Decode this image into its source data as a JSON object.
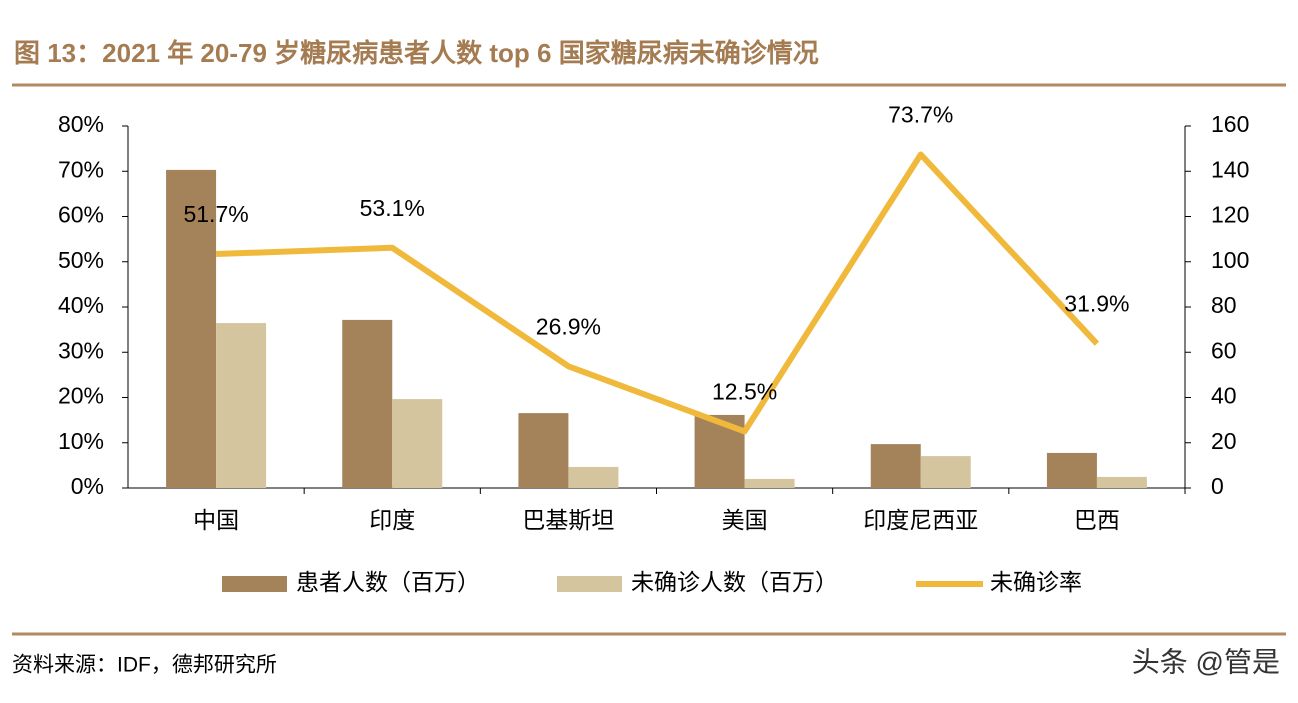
{
  "chart_data": {
    "type": "bar-line",
    "title": "图 13：2021 年 20-79 岁糖尿病患者人数 top 6 国家糖尿病未确诊情况",
    "source": "资料来源：IDF，德邦研究所",
    "watermark": "头条 @管是",
    "categories": [
      "中国",
      "印度",
      "巴基斯坦",
      "美国",
      "印度尼西亚",
      "巴西"
    ],
    "series": [
      {
        "name": "患者人数（百万）",
        "type": "bar",
        "axis": "y2",
        "color": "#a4825a",
        "values": [
          140.6,
          74.3,
          33.1,
          32.3,
          19.4,
          15.5
        ]
      },
      {
        "name": "未确诊人数（百万）",
        "type": "bar",
        "axis": "y2",
        "color": "#d5c59f",
        "values": [
          72.9,
          39.3,
          9.3,
          4.0,
          14.1,
          4.9
        ]
      },
      {
        "name": "未确诊率",
        "type": "line",
        "color": "#f0b93c",
        "values": [
          51.7,
          53.1,
          26.9,
          12.5,
          73.7,
          31.9
        ],
        "value_labels": [
          "51.7%",
          "53.1%",
          "26.9%",
          "12.5%",
          "73.7%",
          "31.9%"
        ]
      }
    ],
    "ylim": [
      0,
      80
    ],
    "yticks": [
      {
        "value": 0,
        "label": "0%"
      },
      {
        "value": 10,
        "label": "10%"
      },
      {
        "value": 20,
        "label": "20%"
      },
      {
        "value": 30,
        "label": "30%"
      },
      {
        "value": 40,
        "label": "40%"
      },
      {
        "value": 50,
        "label": "50%"
      },
      {
        "value": 60,
        "label": "60%"
      },
      {
        "value": 70,
        "label": "70%"
      },
      {
        "value": 80,
        "label": "80%"
      }
    ],
    "y2lim": [
      0,
      160
    ],
    "y2ticks": [
      0,
      20,
      40,
      60,
      80,
      100,
      120,
      140,
      160
    ],
    "grid": false
  }
}
